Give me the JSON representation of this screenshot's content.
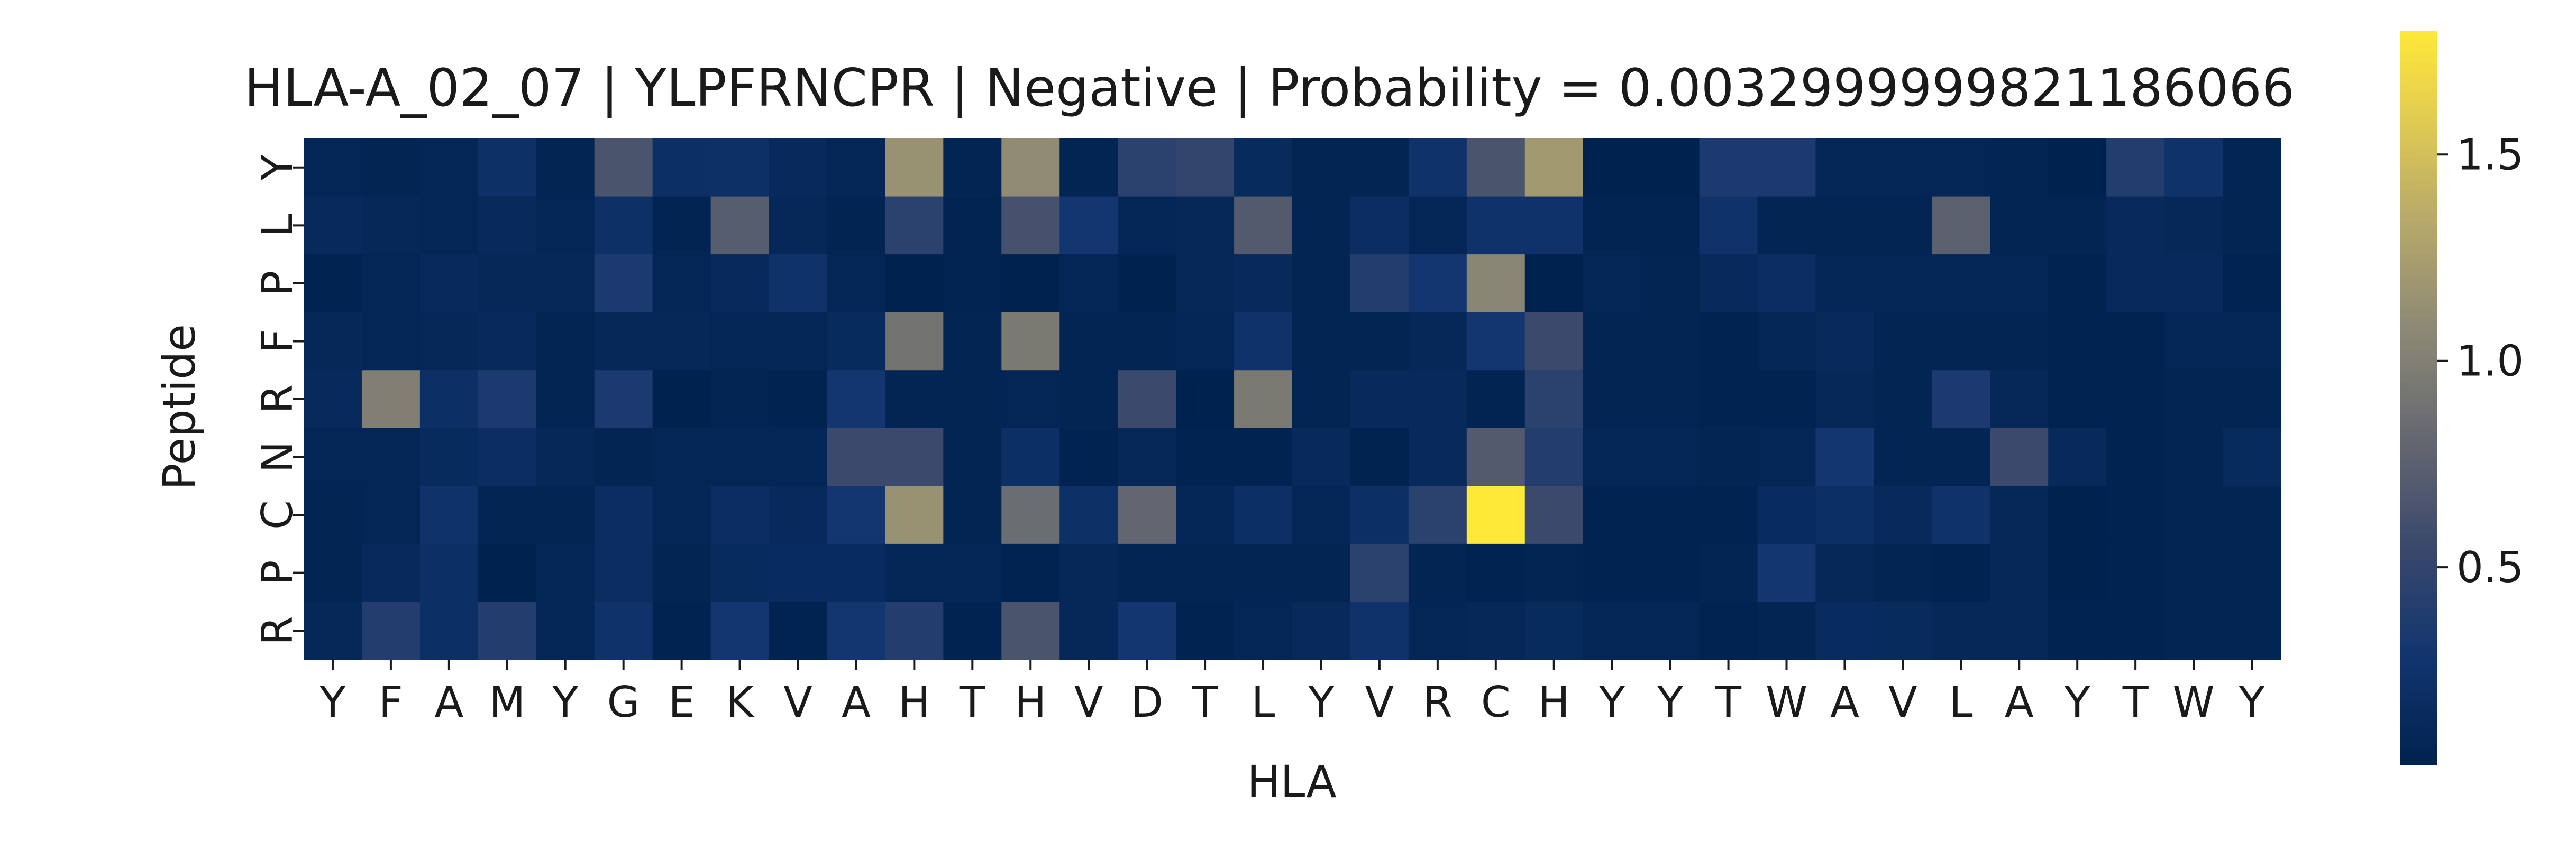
{
  "chart_data": {
    "type": "heatmap",
    "title": "HLA-A_02_07 | YLPFRNCPR | Negative | Probability = 0.0032999999821186066",
    "xlabel": "HLA",
    "ylabel": "Peptide",
    "x_labels": [
      "Y",
      "F",
      "A",
      "M",
      "Y",
      "G",
      "E",
      "K",
      "V",
      "A",
      "H",
      "T",
      "H",
      "V",
      "D",
      "T",
      "L",
      "Y",
      "V",
      "R",
      "C",
      "H",
      "Y",
      "Y",
      "T",
      "W",
      "A",
      "V",
      "L",
      "A",
      "Y",
      "T",
      "W",
      "Y"
    ],
    "y_labels": [
      "Y",
      "L",
      "P",
      "F",
      "R",
      "N",
      "C",
      "P",
      "R"
    ],
    "values": [
      [
        0.08,
        0.06,
        0.08,
        0.22,
        0.06,
        0.65,
        0.2,
        0.22,
        0.12,
        0.08,
        1.15,
        0.06,
        1.1,
        0.06,
        0.45,
        0.5,
        0.14,
        0.06,
        0.06,
        0.25,
        0.65,
        1.2,
        0.02,
        0.02,
        0.35,
        0.35,
        0.08,
        0.08,
        0.08,
        0.06,
        0.02,
        0.4,
        0.25,
        0.06
      ],
      [
        0.12,
        0.1,
        0.08,
        0.12,
        0.08,
        0.22,
        0.05,
        0.72,
        0.1,
        0.05,
        0.45,
        0.05,
        0.62,
        0.3,
        0.08,
        0.1,
        0.7,
        0.06,
        0.18,
        0.08,
        0.25,
        0.25,
        0.05,
        0.05,
        0.25,
        0.06,
        0.06,
        0.06,
        0.75,
        0.06,
        0.06,
        0.12,
        0.1,
        0.06
      ],
      [
        0.04,
        0.08,
        0.12,
        0.1,
        0.1,
        0.35,
        0.08,
        0.12,
        0.25,
        0.08,
        0.02,
        0.05,
        0.02,
        0.08,
        0.02,
        0.1,
        0.12,
        0.06,
        0.4,
        0.3,
        1.05,
        0.02,
        0.08,
        0.06,
        0.12,
        0.18,
        0.08,
        0.08,
        0.08,
        0.08,
        0.04,
        0.12,
        0.12,
        0.04
      ],
      [
        0.1,
        0.08,
        0.1,
        0.12,
        0.06,
        0.1,
        0.1,
        0.08,
        0.08,
        0.14,
        0.9,
        0.06,
        0.95,
        0.06,
        0.06,
        0.08,
        0.25,
        0.06,
        0.06,
        0.1,
        0.3,
        0.55,
        0.06,
        0.06,
        0.04,
        0.08,
        0.12,
        0.06,
        0.06,
        0.06,
        0.04,
        0.04,
        0.08,
        0.08
      ],
      [
        0.12,
        1.0,
        0.2,
        0.35,
        0.06,
        0.35,
        0.02,
        0.06,
        0.04,
        0.3,
        0.06,
        0.06,
        0.08,
        0.06,
        0.55,
        0.02,
        0.95,
        0.06,
        0.12,
        0.12,
        0.05,
        0.45,
        0.06,
        0.06,
        0.04,
        0.04,
        0.1,
        0.06,
        0.35,
        0.1,
        0.04,
        0.04,
        0.06,
        0.06
      ],
      [
        0.08,
        0.08,
        0.14,
        0.18,
        0.1,
        0.06,
        0.08,
        0.08,
        0.08,
        0.55,
        0.55,
        0.06,
        0.2,
        0.04,
        0.1,
        0.04,
        0.04,
        0.12,
        0.03,
        0.12,
        0.7,
        0.4,
        0.08,
        0.08,
        0.06,
        0.08,
        0.3,
        0.06,
        0.06,
        0.55,
        0.12,
        0.04,
        0.06,
        0.14
      ],
      [
        0.06,
        0.08,
        0.25,
        0.06,
        0.06,
        0.18,
        0.08,
        0.18,
        0.12,
        0.3,
        1.15,
        0.06,
        0.85,
        0.22,
        0.8,
        0.08,
        0.2,
        0.08,
        0.2,
        0.45,
        1.8,
        0.55,
        0.04,
        0.04,
        0.04,
        0.16,
        0.2,
        0.12,
        0.25,
        0.1,
        0.02,
        0.04,
        0.06,
        0.06
      ],
      [
        0.06,
        0.12,
        0.2,
        0.02,
        0.08,
        0.18,
        0.06,
        0.14,
        0.16,
        0.16,
        0.08,
        0.08,
        0.04,
        0.1,
        0.06,
        0.06,
        0.06,
        0.06,
        0.45,
        0.06,
        0.04,
        0.06,
        0.04,
        0.04,
        0.06,
        0.3,
        0.1,
        0.06,
        0.04,
        0.1,
        0.02,
        0.04,
        0.06,
        0.06
      ],
      [
        0.1,
        0.4,
        0.2,
        0.4,
        0.08,
        0.25,
        0.04,
        0.3,
        0.04,
        0.3,
        0.4,
        0.04,
        0.65,
        0.1,
        0.3,
        0.04,
        0.08,
        0.12,
        0.25,
        0.08,
        0.1,
        0.14,
        0.08,
        0.08,
        0.04,
        0.06,
        0.16,
        0.14,
        0.1,
        0.1,
        0.04,
        0.04,
        0.06,
        0.06
      ]
    ],
    "colormap": "cividis",
    "vmin": 0.02,
    "vmax": 1.8,
    "colorbar_ticks": [
      0.5,
      1.0,
      1.5
    ],
    "colorbar_tick_labels": [
      "0.5",
      "1.0",
      "1.5"
    ],
    "grid": false,
    "legend": "colorbar-right"
  }
}
